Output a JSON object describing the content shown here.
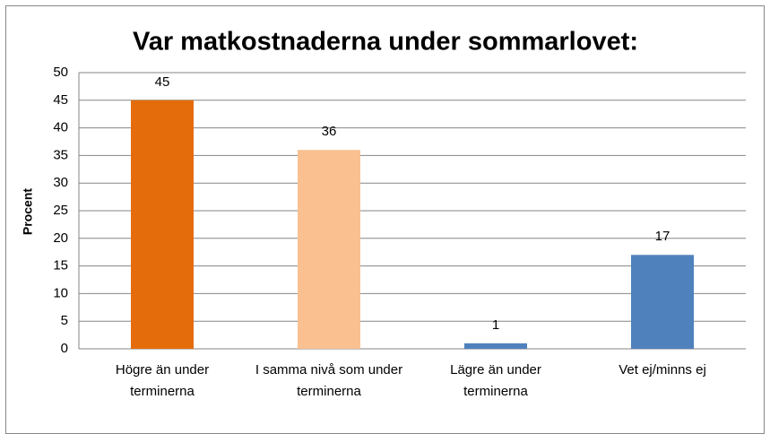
{
  "chart_data": {
    "type": "bar",
    "title": "Var matkostnaderna under sommarlovet:",
    "y_label": "Procent",
    "categories": [
      "Högre än under terminerna",
      "I samma nivå som under terminerna",
      "Lägre än under terminerna",
      "Vet ej/minns ej"
    ],
    "values": [
      45,
      36,
      1,
      17
    ],
    "colors": [
      "#e46c0a",
      "#fac090",
      "#4f81bd",
      "#4f81bd"
    ],
    "ylim": [
      0,
      50
    ],
    "yticks": [
      0,
      5,
      10,
      15,
      20,
      25,
      30,
      35,
      40,
      45,
      50
    ],
    "grid": true
  }
}
